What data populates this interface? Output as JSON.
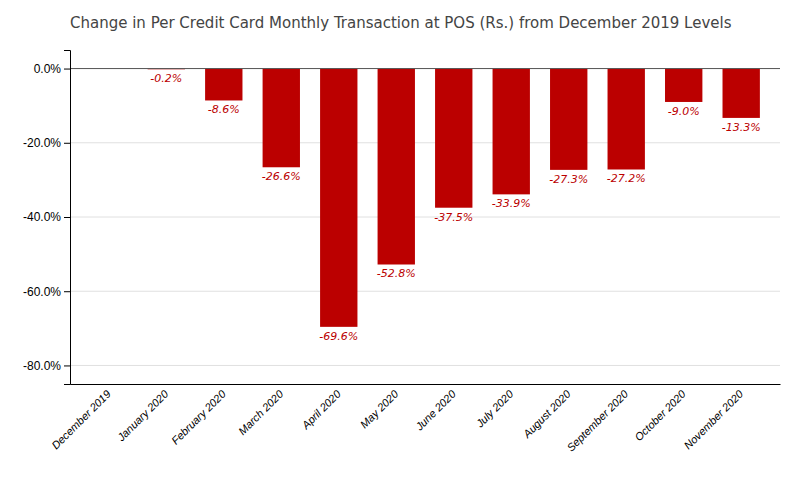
{
  "chart_data": {
    "type": "bar",
    "title": "Change in Per Credit Card Monthly Transaction at POS (Rs.) from December 2019 Levels",
    "categories": [
      "December 2019",
      "January 2020",
      "February 2020",
      "March 2020",
      "April 2020",
      "May 2020",
      "June 2020",
      "July 2020",
      "August 2020",
      "September 2020",
      "October 2020",
      "November 2020"
    ],
    "values": [
      0.0,
      -0.2,
      -8.6,
      -26.6,
      -69.6,
      -52.8,
      -37.5,
      -33.9,
      -27.3,
      -27.2,
      -9.0,
      -13.3
    ],
    "value_labels": [
      null,
      "-0.2%",
      "-8.6%",
      "-26.6%",
      "-69.6%",
      "-52.8%",
      "-37.5%",
      "-33.9%",
      "-27.3%",
      "-27.2%",
      "-9.0%",
      "-13.3%"
    ],
    "data_labels": true,
    "color": "#bb0000",
    "ylim": [
      -85,
      5
    ],
    "yticks": [
      {
        "value": 0,
        "label": "0.0%"
      },
      {
        "value": -20,
        "label": "-20.0%"
      },
      {
        "value": -40,
        "label": "-40.0%"
      },
      {
        "value": -60,
        "label": "-60.0%"
      },
      {
        "value": -80,
        "label": "-80.0%"
      }
    ],
    "grid": true
  }
}
